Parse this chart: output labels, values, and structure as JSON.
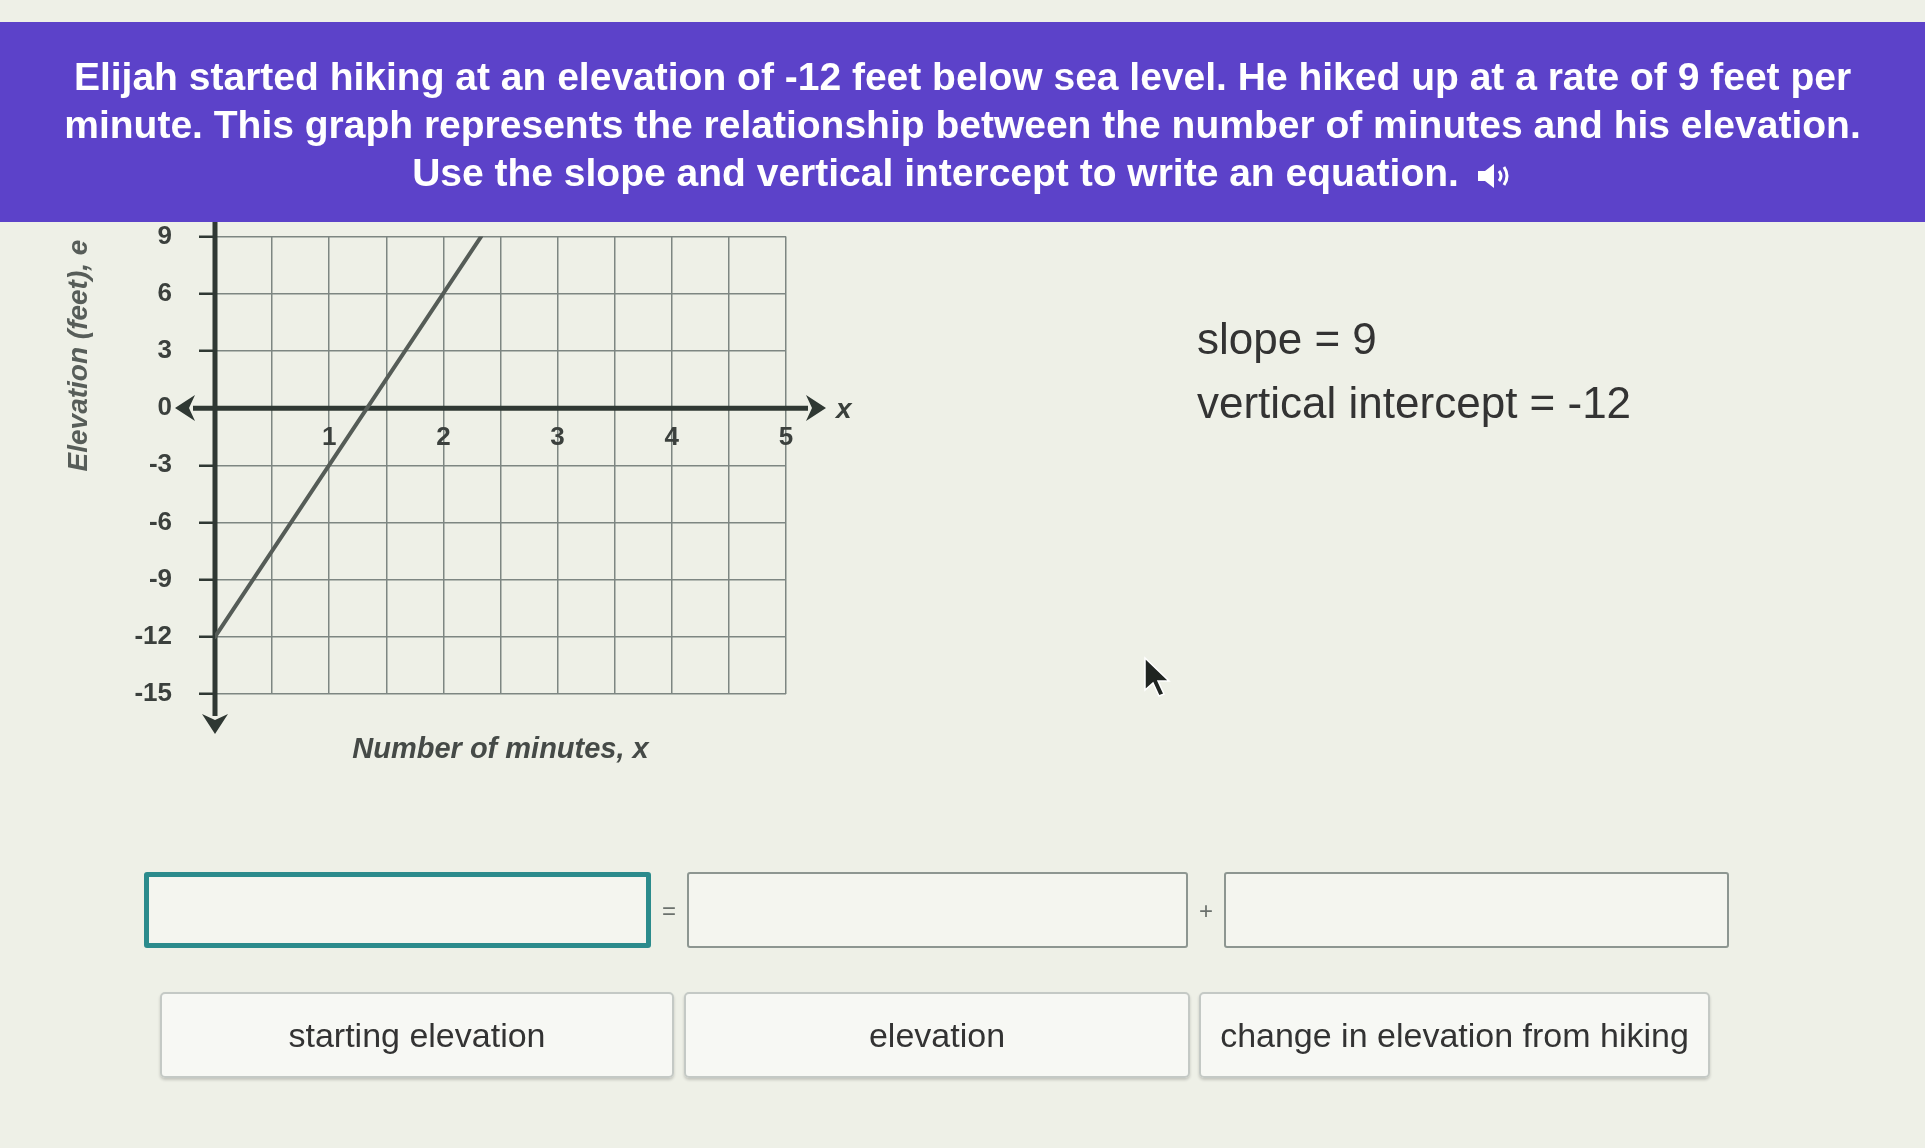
{
  "chart_data": {
    "type": "line",
    "title": "Elijah started hiking at an elevation of -12 feet below sea level. He hiked up at a rate of 9 feet per minute. This graph represents the relationship between the number of minutes and his elevation. Use the slope and vertical intercept to write an equation.",
    "xlabel": "Number of minutes, x",
    "ylabel": "Elevation (feet), e",
    "annotations": [
      "x",
      "slope = 9",
      "vertical intercept = -12",
      "=",
      "+",
      "starting elevation",
      "elevation",
      "change in elevation from hiking"
    ],
    "x": [
      0,
      2.33
    ],
    "values": [
      -12,
      9
    ],
    "color": "#555c57",
    "xlim": [
      0,
      5
    ],
    "ylim": [
      -15,
      9
    ],
    "xticks": [
      {
        "value": 0,
        "label": null
      },
      {
        "value": 0.5,
        "label": null
      },
      1,
      {
        "value": 1.5,
        "label": null
      },
      2,
      {
        "value": 2.5,
        "label": null
      },
      3,
      {
        "value": 3.5,
        "label": null
      },
      4,
      {
        "value": 4.5,
        "label": null
      },
      5
    ],
    "yticks": [
      -15,
      -12,
      -9,
      -6,
      -3,
      0,
      3,
      6,
      9
    ],
    "grid": true,
    "marker": "none",
    "line_style": "solid"
  }
}
